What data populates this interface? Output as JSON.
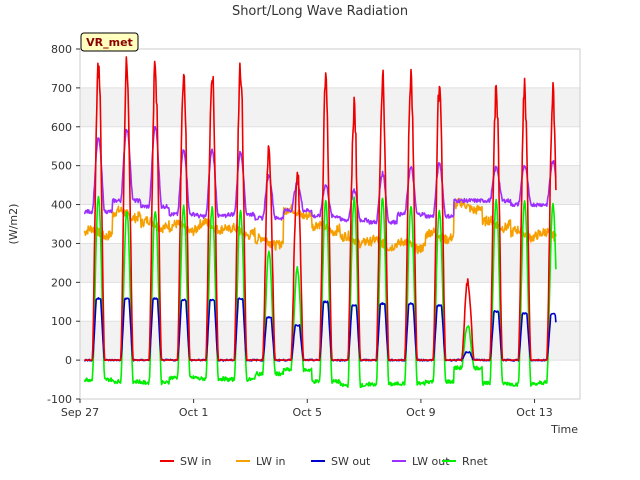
{
  "chart_data": {
    "type": "line",
    "title": "Short/Long Wave Radiation",
    "xlabel": "Time",
    "ylabel": "(W/m2)",
    "site_label": "VR_met",
    "ylim": [
      -100,
      800
    ],
    "xlim": [
      0,
      17.6
    ],
    "y_ticks": [
      -100,
      0,
      100,
      200,
      300,
      400,
      500,
      600,
      700,
      800
    ],
    "x_ticks": [
      {
        "value": 0,
        "label": "Sep 27"
      },
      {
        "value": 4,
        "label": "Oct 1"
      },
      {
        "value": 8,
        "label": "Oct 5"
      },
      {
        "value": 12,
        "label": "Oct 9"
      },
      {
        "value": 16,
        "label": "Oct 13"
      }
    ],
    "background_bands": "alternating light grey every 100 W/m2",
    "legend_position": "bottom",
    "day_starts": [
      0,
      1,
      2,
      3,
      4,
      5,
      6,
      7,
      8,
      9,
      10,
      11,
      12,
      13,
      14,
      15,
      16
    ],
    "series": [
      {
        "name": "SW in",
        "color": "#ee0000",
        "daily_peak": [
          795,
          795,
          785,
          775,
          780,
          785,
          570,
          510,
          745,
          690,
          760,
          755,
          745,
          210,
          740,
          735,
          725
        ]
      },
      {
        "name": "LW in",
        "color": "#f5a000",
        "daily_level": [
          328,
          375,
          350,
          340,
          345,
          330,
          305,
          380,
          340,
          310,
          300,
          295,
          320,
          395,
          350,
          325,
          320
        ]
      },
      {
        "name": "SW out",
        "color": "#0000cc",
        "daily_peak": [
          158,
          158,
          158,
          155,
          155,
          158,
          110,
          90,
          150,
          140,
          145,
          145,
          140,
          20,
          125,
          120,
          118
        ]
      },
      {
        "name": "LW out",
        "color": "#9b30ff",
        "daily_base": [
          382,
          410,
          395,
          375,
          370,
          375,
          365,
          385,
          370,
          360,
          355,
          375,
          370,
          410,
          410,
          400,
          400
        ],
        "daily_peak": [
          570,
          595,
          600,
          540,
          540,
          535,
          475,
          455,
          450,
          435,
          480,
          495,
          505,
          410,
          495,
          500,
          510
        ]
      },
      {
        "name": "Rnet",
        "color": "#00ee00",
        "daily_base": [
          -50,
          -55,
          -58,
          -45,
          -48,
          -50,
          -35,
          -25,
          -55,
          -65,
          -62,
          -60,
          -55,
          -20,
          -60,
          -62,
          -58
        ],
        "daily_peak": [
          420,
          385,
          385,
          395,
          390,
          385,
          280,
          235,
          410,
          415,
          415,
          395,
          385,
          90,
          410,
          410,
          400
        ]
      }
    ]
  }
}
